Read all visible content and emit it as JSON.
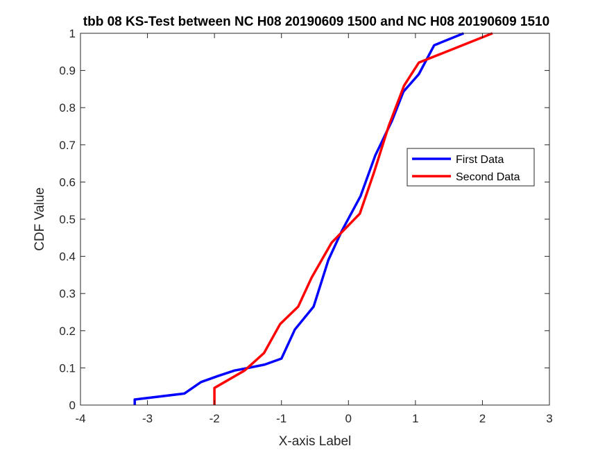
{
  "chart_data": {
    "type": "line",
    "title": "tbb 08 KS-Test between NC H08 20190609 1500 and NC H08 20190609 1510",
    "xlabel": "X-axis Label",
    "ylabel": "CDF Value",
    "xlim": [
      -4,
      3
    ],
    "ylim": [
      0,
      1
    ],
    "xticks": [
      "-4",
      "-3",
      "-2",
      "-1",
      "0",
      "1",
      "2",
      "3"
    ],
    "yticks": [
      "0",
      "0.1",
      "0.2",
      "0.3",
      "0.4",
      "0.5",
      "0.6",
      "0.7",
      "0.8",
      "0.9",
      "1"
    ],
    "grid": false,
    "legend_position": "right",
    "series": [
      {
        "name": "First Data",
        "color": "#0000ff",
        "points": [
          [
            -3.19,
            0.0
          ],
          [
            -3.19,
            0.015
          ],
          [
            -2.45,
            0.031
          ],
          [
            -2.2,
            0.062
          ],
          [
            -1.95,
            0.078
          ],
          [
            -1.7,
            0.093
          ],
          [
            -1.55,
            0.098
          ],
          [
            -1.25,
            0.109
          ],
          [
            -1.0,
            0.125
          ],
          [
            -0.8,
            0.203
          ],
          [
            -0.52,
            0.265
          ],
          [
            -0.3,
            0.39
          ],
          [
            -0.1,
            0.468
          ],
          [
            0.18,
            0.562
          ],
          [
            0.4,
            0.671
          ],
          [
            0.65,
            0.765
          ],
          [
            0.82,
            0.843
          ],
          [
            1.05,
            0.89
          ],
          [
            1.28,
            0.968
          ],
          [
            1.72,
            1.0
          ]
        ]
      },
      {
        "name": "Second Data",
        "color": "#ff0000",
        "points": [
          [
            -2.0,
            0.0
          ],
          [
            -2.0,
            0.046
          ],
          [
            -1.55,
            0.093
          ],
          [
            -1.26,
            0.14
          ],
          [
            -1.02,
            0.218
          ],
          [
            -0.75,
            0.265
          ],
          [
            -0.55,
            0.343
          ],
          [
            -0.25,
            0.437
          ],
          [
            0.17,
            0.515
          ],
          [
            0.38,
            0.625
          ],
          [
            0.6,
            0.75
          ],
          [
            0.83,
            0.859
          ],
          [
            1.05,
            0.921
          ],
          [
            2.15,
            1.0
          ]
        ]
      }
    ]
  }
}
